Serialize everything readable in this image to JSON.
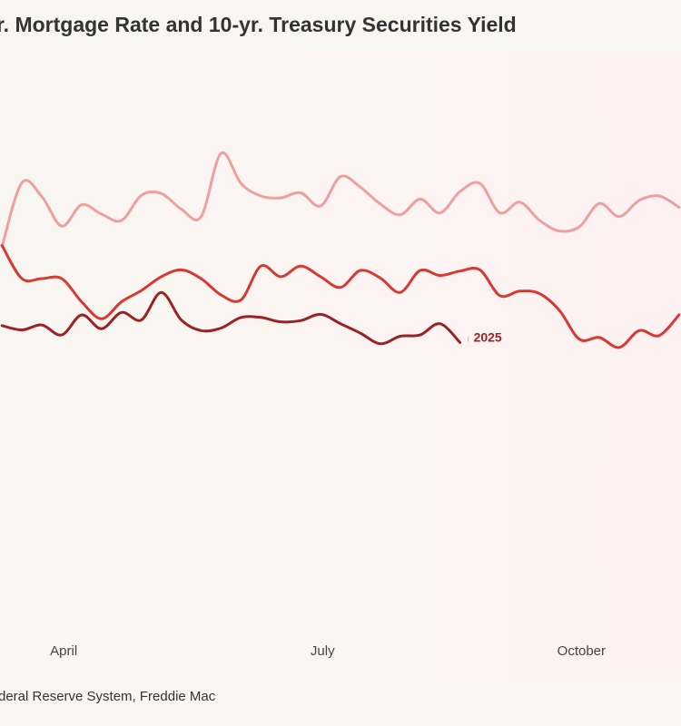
{
  "title": "r. Mortgage Rate and 10-yr. Treasury Securities Yield",
  "source": "deral Reserve System, Freddie Mac",
  "chart_data": {
    "type": "line",
    "title": "r. Mortgage Rate and 10-yr. Treasury Securities Yield",
    "xlabel": "",
    "ylabel": "",
    "x_ticks": [
      {
        "label": "April",
        "week": 3.6
      },
      {
        "label": "July",
        "week": 16.6
      },
      {
        "label": "October",
        "week": 29.6
      }
    ],
    "x_range_weeks": [
      0.4,
      34.6
    ],
    "y_range": [
      0,
      10
    ],
    "grid": false,
    "series": [
      {
        "name": "",
        "color": "#ee9f9f",
        "stroke_width": 3,
        "x": [
          0.5,
          1.5,
          2.5,
          3.5,
          4.5,
          5.5,
          6.5,
          7.5,
          8.5,
          9.5,
          10.5,
          11.5,
          12.5,
          13.5,
          14.5,
          15.5,
          16.5,
          17.5,
          18.5,
          19.5,
          20.5,
          21.5,
          22.5,
          23.5,
          24.5,
          25.5,
          26.5,
          27.5,
          28.5,
          29.5,
          30.5,
          31.5,
          32.5,
          33.5,
          34.5
        ],
        "values": [
          6.93,
          7.95,
          7.73,
          7.26,
          7.6,
          7.45,
          7.35,
          7.75,
          7.78,
          7.53,
          7.41,
          8.42,
          7.94,
          7.74,
          7.71,
          7.79,
          7.58,
          8.05,
          7.88,
          7.61,
          7.44,
          7.69,
          7.47,
          7.81,
          7.94,
          7.47,
          7.64,
          7.35,
          7.18,
          7.25,
          7.62,
          7.41,
          7.67,
          7.74,
          7.56
        ]
      },
      {
        "name": "",
        "color": "#d73a32",
        "stroke_width": 3,
        "x": [
          0.5,
          1.5,
          2.5,
          3.5,
          4.5,
          5.5,
          6.5,
          7.5,
          8.5,
          9.5,
          10.5,
          11.5,
          12.5,
          13.5,
          14.5,
          15.5,
          16.5,
          17.5,
          18.5,
          19.5,
          20.5,
          21.5,
          22.5,
          23.5,
          24.5,
          25.5,
          26.5,
          27.5,
          28.5,
          29.5,
          30.5,
          31.5,
          32.5,
          33.5,
          34.5
        ],
        "values": [
          6.95,
          6.42,
          6.42,
          6.42,
          6.05,
          5.78,
          6.05,
          6.23,
          6.45,
          6.56,
          6.42,
          6.16,
          6.08,
          6.62,
          6.45,
          6.62,
          6.45,
          6.28,
          6.55,
          6.43,
          6.2,
          6.55,
          6.47,
          6.54,
          6.56,
          6.15,
          6.22,
          6.18,
          5.91,
          5.45,
          5.48,
          5.32,
          5.59,
          5.51,
          5.84
        ]
      },
      {
        "name": "2025",
        "color": "#9b2226",
        "stroke_width": 3,
        "x": [
          0.5,
          1.5,
          2.5,
          3.5,
          4.5,
          5.5,
          6.5,
          7.5,
          8.5,
          9.5,
          10.5,
          11.5,
          12.5,
          13.5,
          14.5,
          15.5,
          16.5,
          17.5,
          18.5,
          19.5,
          20.5,
          21.5,
          22.5,
          23.5
        ],
        "values": [
          5.67,
          5.6,
          5.68,
          5.52,
          5.84,
          5.62,
          5.88,
          5.76,
          6.2,
          5.76,
          5.59,
          5.63,
          5.8,
          5.8,
          5.73,
          5.75,
          5.85,
          5.7,
          5.55,
          5.38,
          5.5,
          5.52,
          5.7,
          5.4
        ]
      }
    ]
  }
}
